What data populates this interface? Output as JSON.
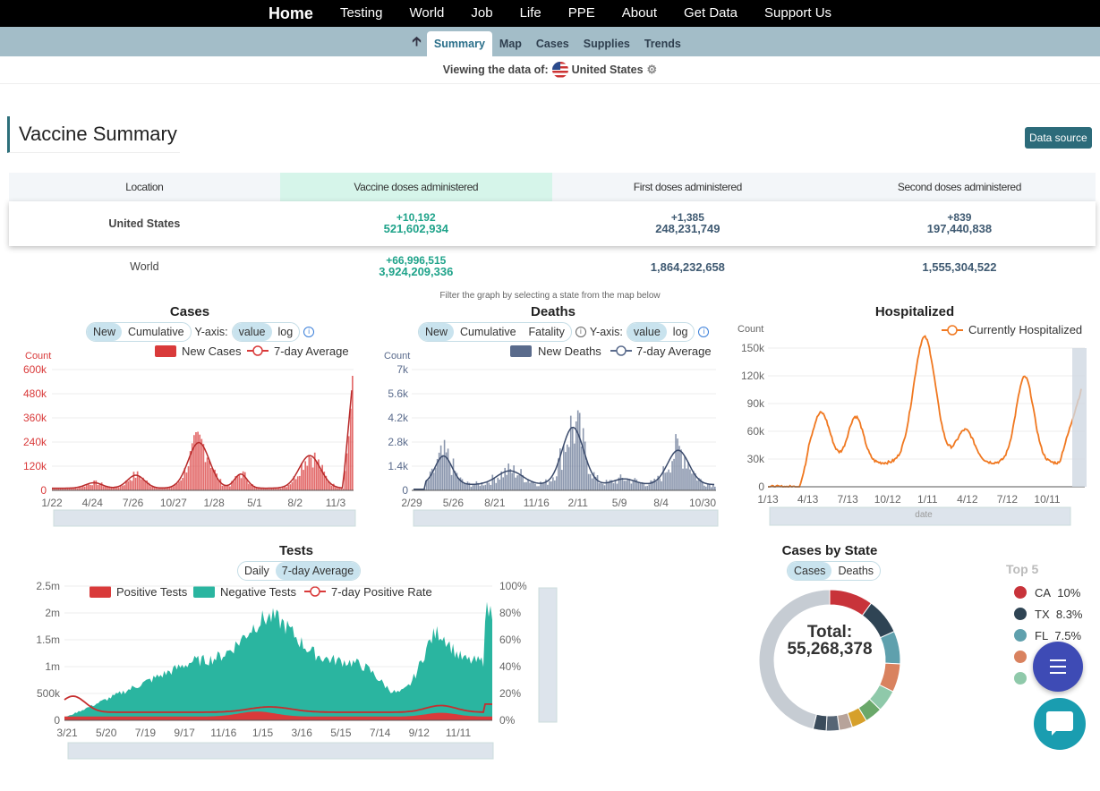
{
  "nav": {
    "items": [
      "Home",
      "Testing",
      "World",
      "Job",
      "Life",
      "PPE",
      "About",
      "Get Data",
      "Support Us"
    ]
  },
  "subnav": {
    "up_icon": "arrow-up-icon",
    "tabs": [
      "Summary",
      "Map",
      "Cases",
      "Supplies",
      "Trends"
    ],
    "active": "Summary"
  },
  "viewing": {
    "label": "Viewing the data of:",
    "location": "United States",
    "settings_icon": "gear-icon"
  },
  "summary": {
    "title": "Vaccine Summary",
    "data_source_label": "Data source",
    "columns": [
      "Location",
      "Vaccine doses administered",
      "First doses administered",
      "Second doses administered"
    ],
    "rows": [
      {
        "location": "United States",
        "vaccine_delta": "+10,192",
        "vaccine": "521,602,934",
        "first_delta": "+1,385",
        "first": "248,231,749",
        "second_delta": "+839",
        "second": "197,440,838"
      },
      {
        "location": "World",
        "vaccine_delta": "+66,996,515",
        "vaccine": "3,924,209,336",
        "first": "1,864,232,658",
        "second": "1,555,304,522"
      }
    ]
  },
  "filter_hint": "Filter the graph by selecting a state from the map below",
  "cases_chart": {
    "title": "Cases",
    "modes": [
      "New",
      "Cumulative"
    ],
    "mode_on": "New",
    "yaxis_label": "Y-axis:",
    "scales": [
      "value",
      "log"
    ],
    "scale_on": "value",
    "legend": [
      "New Cases",
      "7-day Average"
    ],
    "count_label": "Count",
    "yticks": [
      "600k",
      "480k",
      "360k",
      "240k",
      "120k",
      "0"
    ],
    "xticks": [
      "1/22",
      "4/24",
      "7/26",
      "10/27",
      "1/28",
      "5/1",
      "8/2",
      "11/3"
    ],
    "color": "#d93a3a"
  },
  "deaths_chart": {
    "title": "Deaths",
    "modes": [
      "New",
      "Cumulative",
      "Fatality"
    ],
    "mode_on": "New",
    "yaxis_label": "Y-axis:",
    "scales": [
      "value",
      "log"
    ],
    "scale_on": "value",
    "legend": [
      "New Deaths",
      "7-day Average"
    ],
    "count_label": "Count",
    "yticks": [
      "7k",
      "5.6k",
      "4.2k",
      "2.8k",
      "1.4k",
      "0"
    ],
    "xticks": [
      "2/29",
      "5/26",
      "8/21",
      "11/16",
      "2/11",
      "5/9",
      "8/4",
      "10/30"
    ],
    "color": "#5a6b8c"
  },
  "hosp_chart": {
    "title": "Hospitalized",
    "legend": [
      "Currently Hospitalized"
    ],
    "count_label": "Count",
    "yticks": [
      "150k",
      "120k",
      "90k",
      "60k",
      "30k",
      "0"
    ],
    "xticks": [
      "1/13",
      "4/13",
      "7/13",
      "10/12",
      "1/11",
      "4/12",
      "7/12",
      "10/11"
    ],
    "xlabel": "date",
    "color": "#f07820"
  },
  "tests_chart": {
    "title": "Tests",
    "modes": [
      "Daily",
      "7-day Average"
    ],
    "mode_on": "7-day Average",
    "legend": [
      "Positive Tests",
      "Negative Tests",
      "7-day Positive Rate"
    ],
    "yticks": [
      "2.5m",
      "2m",
      "1.5m",
      "1m",
      "500k",
      "0"
    ],
    "yticks_right": [
      "100%",
      "80%",
      "60%",
      "40%",
      "20%",
      "0%"
    ],
    "xticks": [
      "3/21",
      "5/20",
      "7/19",
      "9/17",
      "11/16",
      "1/15",
      "3/16",
      "5/15",
      "7/14",
      "9/12",
      "11/11"
    ],
    "colors": {
      "positive": "#d93a3a",
      "negative": "#2ab5a0"
    }
  },
  "state_chart": {
    "title": "Cases by State",
    "modes": [
      "Cases",
      "Deaths"
    ],
    "mode_on": "Cases",
    "total_label": "Total:",
    "total": "55,268,378",
    "top_title": "Top 5",
    "top": [
      {
        "state": "CA",
        "pct": "10%",
        "color": "#c8333a"
      },
      {
        "state": "TX",
        "pct": "8.3%",
        "color": "#2f4454"
      },
      {
        "state": "FL",
        "pct": "7.5%",
        "color": "#5fa0ad"
      },
      {
        "state": "",
        "pct": "",
        "color": "#d9825f"
      },
      {
        "state": "",
        "pct": "",
        "color": "#8fc9aa"
      }
    ]
  },
  "fab": {
    "menu_icon": "menu-icon",
    "chat_icon": "chat-icon"
  }
}
